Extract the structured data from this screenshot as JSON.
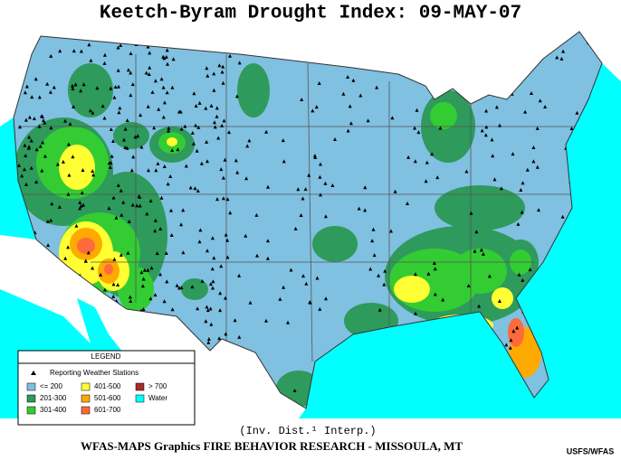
{
  "header": {
    "title": "Keetch-Byram Drought Index:  09-MAY-07"
  },
  "legend": {
    "title": "LEGEND",
    "stations_label": "Reporting Weather Stations",
    "items": [
      {
        "label": "<= 200",
        "color": "#80c0e0"
      },
      {
        "label": "201-300",
        "color": "#2e9a5c"
      },
      {
        "label": "301-400",
        "color": "#33cc33"
      },
      {
        "label": "401-500",
        "color": "#ffff33"
      },
      {
        "label": "501-600",
        "color": "#ffaa00"
      },
      {
        "label": "601-700",
        "color": "#ff6a3d"
      },
      {
        "label": "> 700",
        "color": "#a82a2a"
      },
      {
        "label": "Water",
        "color": "#00ffff"
      }
    ]
  },
  "footer": {
    "method": "(Inv. Dist.¹ Interp.)",
    "credit": "WFAS-MAPS Graphics  FIRE BEHAVIOR RESEARCH - MISSOULA, MT",
    "source": "USFS/WFAS"
  }
}
